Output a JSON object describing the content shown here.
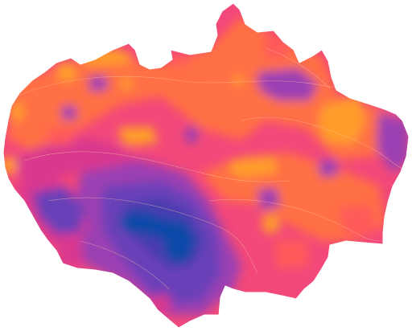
{
  "map": {
    "colors": {
      "background": "#ffffff",
      "orange_high": "#ff9c2a",
      "orange": "#ff6f45",
      "salmon": "#ff5a5a",
      "pink": "#f2487a",
      "magenta": "#d9398f",
      "purple": "#9b3fb2",
      "violet": "#6a3fb8",
      "indigo": "#4a3db0",
      "blue_deep": "#0b4aa8",
      "contour": "#ffc9a8"
    }
  }
}
